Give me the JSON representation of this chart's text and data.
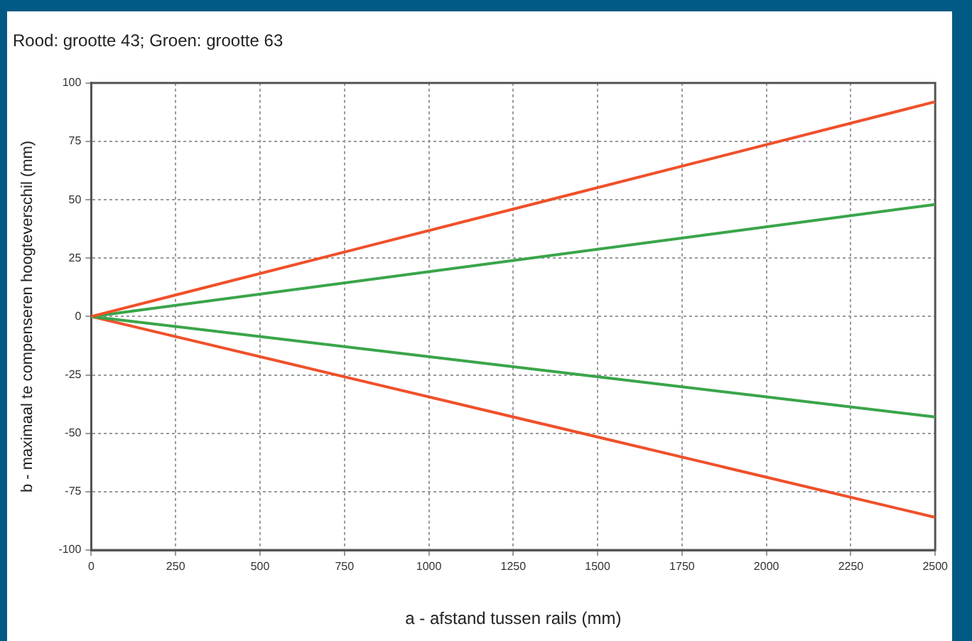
{
  "chart_data": {
    "type": "line",
    "title": "Rood: grootte 43; Groen: grootte 63",
    "xlabel": "a - afstand tussen rails (mm)",
    "ylabel": "b - maximaal te compenseren hoogteverschil (mm)",
    "x": [
      0,
      2500
    ],
    "series": [
      {
        "color": "#f0502a",
        "values": [
          0,
          92
        ]
      },
      {
        "color": "#3aa54a",
        "values": [
          0,
          48
        ]
      },
      {
        "color": "#3aa54a",
        "values": [
          0,
          -43
        ]
      },
      {
        "color": "#f0502a",
        "values": [
          0,
          -86
        ]
      }
    ],
    "xlim": [
      0,
      2500
    ],
    "xticks": [
      0,
      250,
      500,
      750,
      1000,
      1250,
      1500,
      1750,
      2000,
      2250,
      2500
    ],
    "ylim": [
      -100,
      100
    ],
    "yticks": [
      -100,
      -75,
      -50,
      -25,
      0,
      25,
      50,
      75,
      100
    ],
    "grid": true,
    "legend": false,
    "marker": "none",
    "line_style": "solid"
  }
}
